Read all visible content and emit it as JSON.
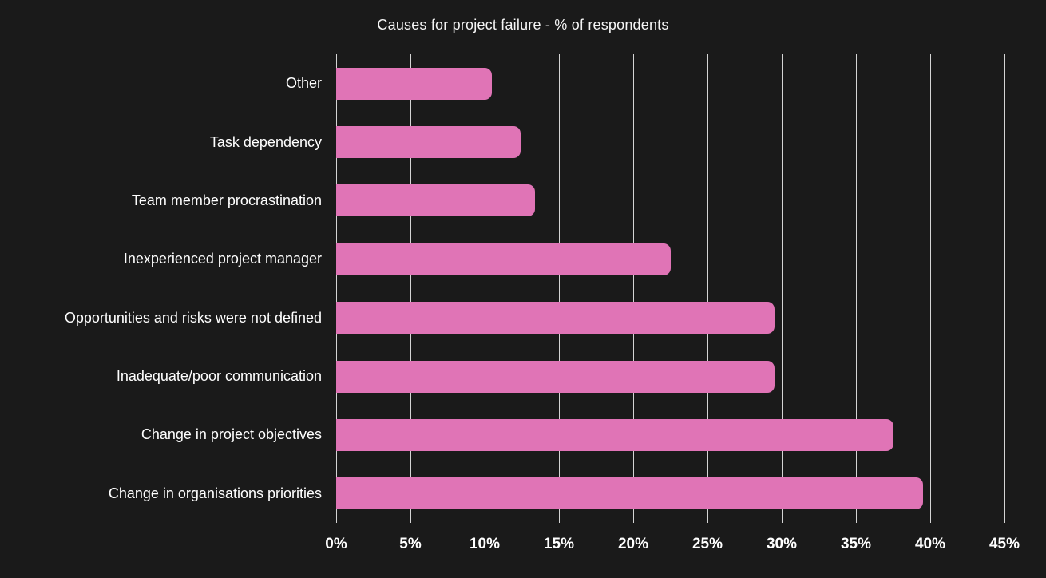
{
  "chart_data": {
    "type": "bar",
    "orientation": "horizontal",
    "title": "Causes for project failure - % of respondents",
    "categories": [
      "Other",
      "Task dependency",
      "Team member procrastination",
      "Inexperienced project manager",
      "Opportunities and risks were not defined",
      "Inadequate/poor communication",
      "Change in project objectives",
      "Change in organisations priorities"
    ],
    "values": [
      10.5,
      12.4,
      13.4,
      22.5,
      29.5,
      29.5,
      37.5,
      39.5
    ],
    "x_ticks": [
      {
        "label": "0%",
        "value": 0
      },
      {
        "label": "5%",
        "value": 5
      },
      {
        "label": "10%",
        "value": 10
      },
      {
        "label": "15%",
        "value": 15
      },
      {
        "label": "20%",
        "value": 20
      },
      {
        "label": "25%",
        "value": 25
      },
      {
        "label": "30%",
        "value": 30
      },
      {
        "label": "35%",
        "value": 35
      },
      {
        "label": "40%",
        "value": 40
      },
      {
        "label": "45%",
        "value": 45
      }
    ],
    "xlim": [
      0,
      45
    ],
    "xlabel": "",
    "ylabel": "",
    "unit": "%",
    "grid": true,
    "legend": false,
    "colors": {
      "bar": "#e074b6",
      "background": "#1a1a1a",
      "gridline": "#d4d4d4",
      "text": "#ffffff"
    }
  }
}
